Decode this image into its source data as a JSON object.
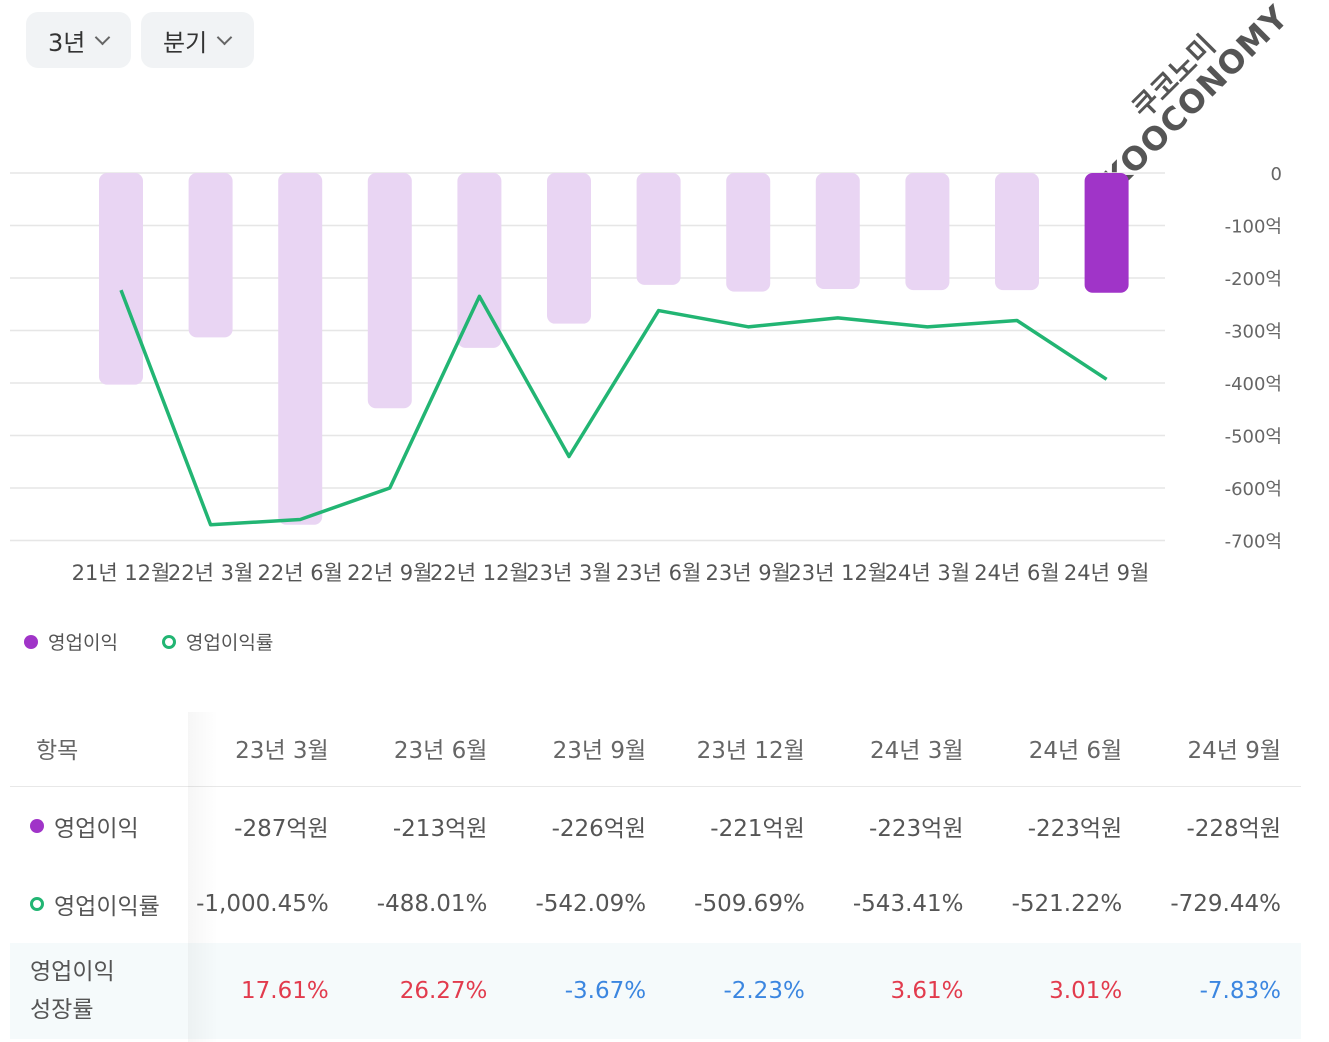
{
  "controls": {
    "period_value": "3년",
    "interval_value": "분기"
  },
  "watermark": {
    "line1": "쿠코노미",
    "line2": "KOOCONOMY"
  },
  "chart_data": {
    "type": "bar+line",
    "categories": [
      "21년 12월",
      "22년 3월",
      "22년 6월",
      "22년 9월",
      "22년 12월",
      "23년 3월",
      "23년 6월",
      "23년 9월",
      "23년 12월",
      "24년 3월",
      "24년 6월",
      "24년 9월"
    ],
    "series": [
      {
        "name": "영업이익",
        "type": "bar",
        "unit": "억",
        "values": [
          -403,
          -313,
          -670,
          -448,
          -333,
          -287,
          -213,
          -226,
          -221,
          -223,
          -223,
          -228
        ],
        "color": "#e9d5f3",
        "highlight_color": "#a034c8",
        "highlight_index": 11
      },
      {
        "name": "영업이익률",
        "type": "line",
        "values_axis_units": [
          -223,
          -670,
          -660,
          -600,
          -235,
          -540,
          -262,
          -293,
          -276,
          -293,
          -281,
          -393
        ],
        "color": "#22b573"
      }
    ],
    "y_axis": {
      "position": "right",
      "ticks": [
        "0",
        "-100억",
        "-200억",
        "-300억",
        "-400억",
        "-500억",
        "-600억",
        "-700억"
      ],
      "min": -700,
      "max": 0
    },
    "grid": true,
    "legend": "bottom-left"
  },
  "legend": [
    {
      "label": "영업이익",
      "style": "filled",
      "color": "#a034c8"
    },
    {
      "label": "영업이익률",
      "style": "ring",
      "color": "#22b573"
    }
  ],
  "table": {
    "header_label": "항목",
    "columns": [
      "23년 3월",
      "23년 6월",
      "23년 9월",
      "23년 12월",
      "24년 3월",
      "24년 6월",
      "24년 9월"
    ],
    "rows": [
      {
        "label": "영업이익",
        "marker": "filled",
        "values": [
          "-287억원",
          "-213억원",
          "-226억원",
          "-221억원",
          "-223억원",
          "-223억원",
          "-228억원"
        ]
      },
      {
        "label": "영업이익률",
        "marker": "ring",
        "values": [
          "-1,000.45%",
          "-488.01%",
          "-542.09%",
          "-509.69%",
          "-543.41%",
          "-521.22%",
          "-729.44%"
        ]
      },
      {
        "label": "영업이익 성장률",
        "marker": "none",
        "values": [
          "17.61%",
          "26.27%",
          "-3.67%",
          "-2.23%",
          "3.61%",
          "3.01%",
          "-7.83%"
        ],
        "signs": [
          "pos",
          "pos",
          "neg",
          "neg",
          "pos",
          "pos",
          "neg"
        ]
      }
    ]
  }
}
